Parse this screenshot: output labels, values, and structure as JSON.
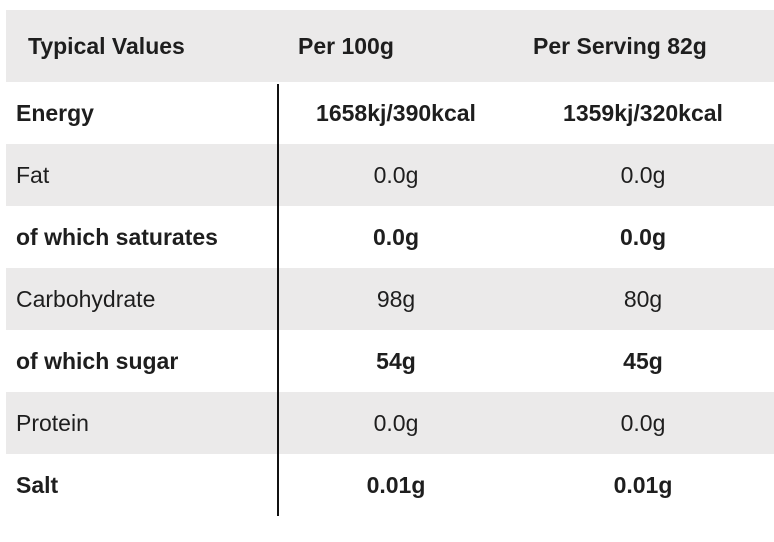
{
  "table": {
    "header": [
      "Typical Values",
      "Per 100g",
      "Per Serving 82g"
    ],
    "rows": [
      [
        "Energy",
        "1658kj/390kcal",
        "1359kj/320kcal"
      ],
      [
        "Fat",
        "0.0g",
        "0.0g"
      ],
      [
        "of which saturates",
        "0.0g",
        "0.0g"
      ],
      [
        "Carbohydrate",
        "98g",
        "80g"
      ],
      [
        "of which sugar",
        "54g",
        "45g"
      ],
      [
        "Protein",
        "0.0g",
        "0.0g"
      ],
      [
        "Salt",
        "0.01g",
        "0.01g"
      ]
    ]
  }
}
